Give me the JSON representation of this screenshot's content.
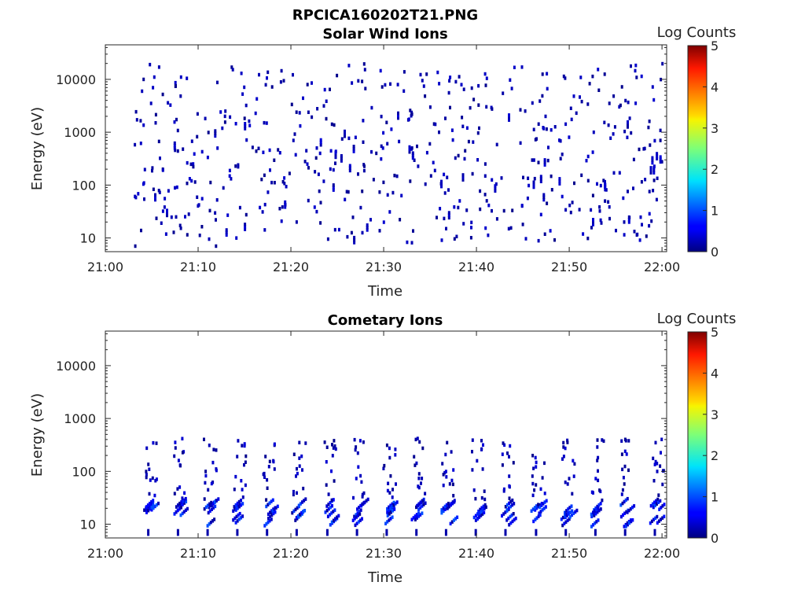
{
  "figure": {
    "title": "RPCICA160202T21.PNG"
  },
  "chart_data": [
    {
      "type": "heatmap",
      "title": "Solar Wind Ions",
      "xlabel": "Time",
      "ylabel": "Energy (eV)",
      "x_range": [
        "21:00",
        "22:00"
      ],
      "x_ticks": [
        "21:00",
        "21:10",
        "21:20",
        "21:30",
        "21:40",
        "21:50",
        "22:00"
      ],
      "y_scale": "log",
      "y_range": [
        5.5,
        45000
      ],
      "y_ticks": [
        "10",
        "100",
        "1000",
        "10000"
      ],
      "y_tick_values": [
        10,
        100,
        1000,
        10000
      ],
      "colorbar": {
        "label": "Log Counts",
        "range": [
          0,
          5
        ],
        "ticks": [
          "0",
          "1",
          "2",
          "3",
          "4",
          "5"
        ],
        "colormap": "jet"
      },
      "background": "#ffffff",
      "note_values": "sparse low-count (log counts ~0-1) pixels scattered across 5-20000 eV, denser between 20 and 3000 eV",
      "points_sample": [
        {
          "t": 3.1,
          "e": 7,
          "c": 0.1
        },
        {
          "t": 4.0,
          "e": 10000,
          "c": 0.1
        },
        {
          "t": 5.3,
          "e": 1500,
          "c": 0.2
        },
        {
          "t": 7.5,
          "e": 25,
          "c": 0.2
        },
        {
          "t": 11.8,
          "e": 7,
          "c": 0.1
        },
        {
          "t": 13.5,
          "e": 17000,
          "c": 0.1
        },
        {
          "t": 20.5,
          "e": 20,
          "c": 0.2
        },
        {
          "t": 29.8,
          "e": 500,
          "c": 0.4
        },
        {
          "t": 34.5,
          "e": 12500,
          "c": 0.1
        },
        {
          "t": 40.0,
          "e": 300,
          "c": 0.3
        },
        {
          "t": 47.0,
          "e": 12500,
          "c": 0.1
        },
        {
          "t": 53.7,
          "e": 12500,
          "c": 0.1
        },
        {
          "t": 55.8,
          "e": 20,
          "c": 0.2
        },
        {
          "t": 59.7,
          "e": 700,
          "c": 0.1
        }
      ]
    },
    {
      "type": "heatmap",
      "title": "Cometary Ions",
      "xlabel": "Time",
      "ylabel": "Energy (eV)",
      "x_range": [
        "21:00",
        "22:00"
      ],
      "x_ticks": [
        "21:00",
        "21:10",
        "21:20",
        "21:30",
        "21:40",
        "21:50",
        "22:00"
      ],
      "y_scale": "log",
      "y_range": [
        5.5,
        45000
      ],
      "y_ticks": [
        "10",
        "100",
        "1000",
        "10000"
      ],
      "y_tick_values": [
        10,
        100,
        1000,
        10000
      ],
      "colorbar": {
        "label": "Log Counts",
        "range": [
          0,
          5
        ],
        "ticks": [
          "0",
          "1",
          "2",
          "3",
          "4",
          "5"
        ],
        "colormap": "jet"
      },
      "background": "#ffffff",
      "note_values": "periodic bursts every ~3.2 min, strongest counts 10-30 eV, extending up to ~500 eV",
      "bursts_min": [
        4.5,
        7.7,
        10.9,
        14.1,
        17.3,
        20.5,
        23.8,
        27.0,
        30.2,
        33.4,
        36.6,
        39.8,
        43.0,
        46.3,
        49.5,
        52.7,
        55.9,
        59.1
      ],
      "peak_log_counts": 1.2
    }
  ]
}
